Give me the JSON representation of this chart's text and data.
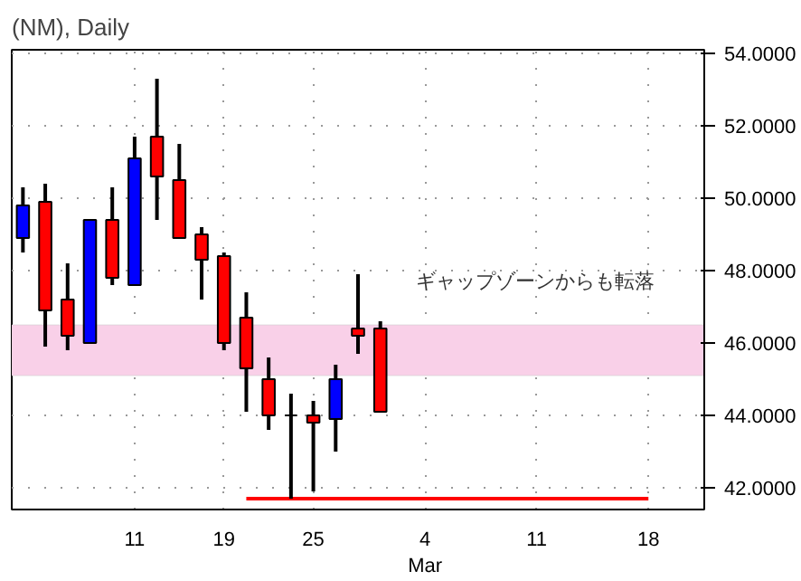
{
  "chart_data": {
    "type": "candlestick",
    "title": "(NM), Daily",
    "categories": [
      null,
      null,
      null,
      null,
      null,
      "11",
      null,
      null,
      null,
      "19",
      null,
      null,
      null,
      "25",
      null,
      null,
      null,
      null,
      "4\nMar",
      null,
      null,
      null,
      null,
      "11",
      null,
      null,
      null,
      null,
      "18",
      null,
      null
    ],
    "ohlc": [
      [
        48.9,
        50.3,
        48.5,
        49.8
      ],
      [
        49.9,
        50.4,
        45.9,
        46.9
      ],
      [
        47.2,
        48.2,
        45.8,
        46.2
      ],
      [
        46.0,
        49.4,
        46.0,
        49.4
      ],
      [
        49.4,
        50.3,
        47.6,
        47.8
      ],
      [
        47.6,
        51.7,
        47.6,
        51.1
      ],
      [
        51.7,
        53.3,
        49.4,
        50.6
      ],
      [
        50.5,
        51.5,
        48.9,
        48.9
      ],
      [
        49.0,
        49.2,
        47.2,
        48.3
      ],
      [
        48.4,
        48.5,
        45.8,
        46.0
      ],
      [
        46.7,
        47.4,
        44.1,
        45.3
      ],
      [
        45.0,
        45.6,
        43.6,
        44.0
      ],
      [
        44.0,
        44.6,
        41.7,
        44.0
      ],
      [
        44.0,
        44.4,
        41.9,
        43.8
      ],
      [
        43.9,
        45.4,
        43.0,
        45.0
      ],
      [
        46.4,
        47.9,
        45.7,
        46.2
      ],
      [
        46.4,
        46.6,
        44.1,
        44.1
      ],
      null,
      null,
      null,
      null,
      null,
      null,
      null,
      null,
      null,
      null,
      null,
      null,
      null,
      null
    ],
    "colors": [
      "#0000ff",
      "#ff0000",
      "#ff0000",
      "#0000ff",
      "#ff0000",
      "#0000ff",
      "#ff0000",
      "#ff0000",
      "#ff0000",
      "#ff0000",
      "#ff0000",
      "#ff0000",
      "#000000",
      "#ff0000",
      "#0000ff",
      "#ff0000",
      "#ff0000",
      null,
      null,
      null,
      null,
      null,
      null,
      null,
      null,
      null,
      null,
      null,
      null,
      null,
      null
    ],
    "series": [
      {
        "type": "line",
        "color": "#ff0000",
        "values": [
          null,
          null,
          null,
          null,
          null,
          null,
          null,
          null,
          null,
          null,
          41.7,
          41.7,
          41.7,
          41.7,
          41.7,
          41.7,
          41.7,
          41.7,
          41.7,
          41.7,
          41.7,
          41.7,
          41.7,
          41.7,
          41.7,
          41.7,
          41.7,
          41.7,
          41.7,
          null,
          null
        ]
      }
    ],
    "bands": [
      {
        "axis": "y",
        "from": 45.1,
        "to": 46.5,
        "color": "#f9d0e8"
      }
    ],
    "annotations": [
      "ギャップゾーンからも転落"
    ],
    "ylim": [
      41.4,
      54.1
    ],
    "yticks": [
      {
        "value": 42,
        "label": "42.0000"
      },
      {
        "value": 44,
        "label": "44.0000"
      },
      {
        "value": 46,
        "label": "46.0000"
      },
      {
        "value": 48,
        "label": "48.0000"
      },
      {
        "value": 50,
        "label": "50.0000"
      },
      {
        "value": 52,
        "label": "52.0000"
      },
      {
        "value": 54,
        "label": "54.0000"
      }
    ],
    "grid": true
  }
}
